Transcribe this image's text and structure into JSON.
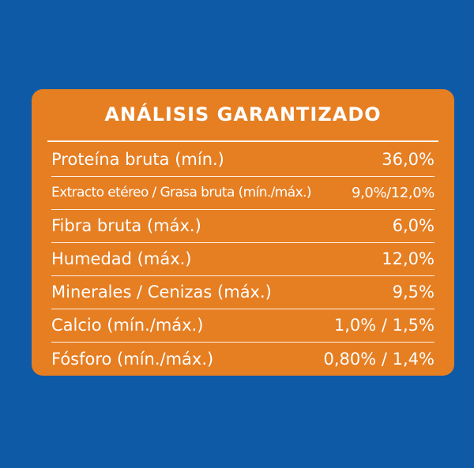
{
  "panel": {
    "title": "ANÁLISIS GARANTIZADO",
    "rows": [
      {
        "label": "Proteína bruta (mín.)",
        "value": "36,0%"
      },
      {
        "label": "Extracto etéreo / Grasa bruta (mín./máx.)",
        "value": "9,0%/12,0%"
      },
      {
        "label": "Fibra bruta (máx.)",
        "value": "6,0%"
      },
      {
        "label": "Humedad (máx.)",
        "value": "12,0%"
      },
      {
        "label": "Minerales / Cenizas (máx.)",
        "value": "9,5%"
      },
      {
        "label": "Calcio (mín./máx.)",
        "value": "1,0% / 1,5%"
      },
      {
        "label": "Fósforo (mín./máx.)",
        "value": "0,80% / 1,4%"
      }
    ]
  },
  "colors": {
    "background": "#0f5aa6",
    "panel": "#e67e22",
    "text": "#ffffff"
  }
}
